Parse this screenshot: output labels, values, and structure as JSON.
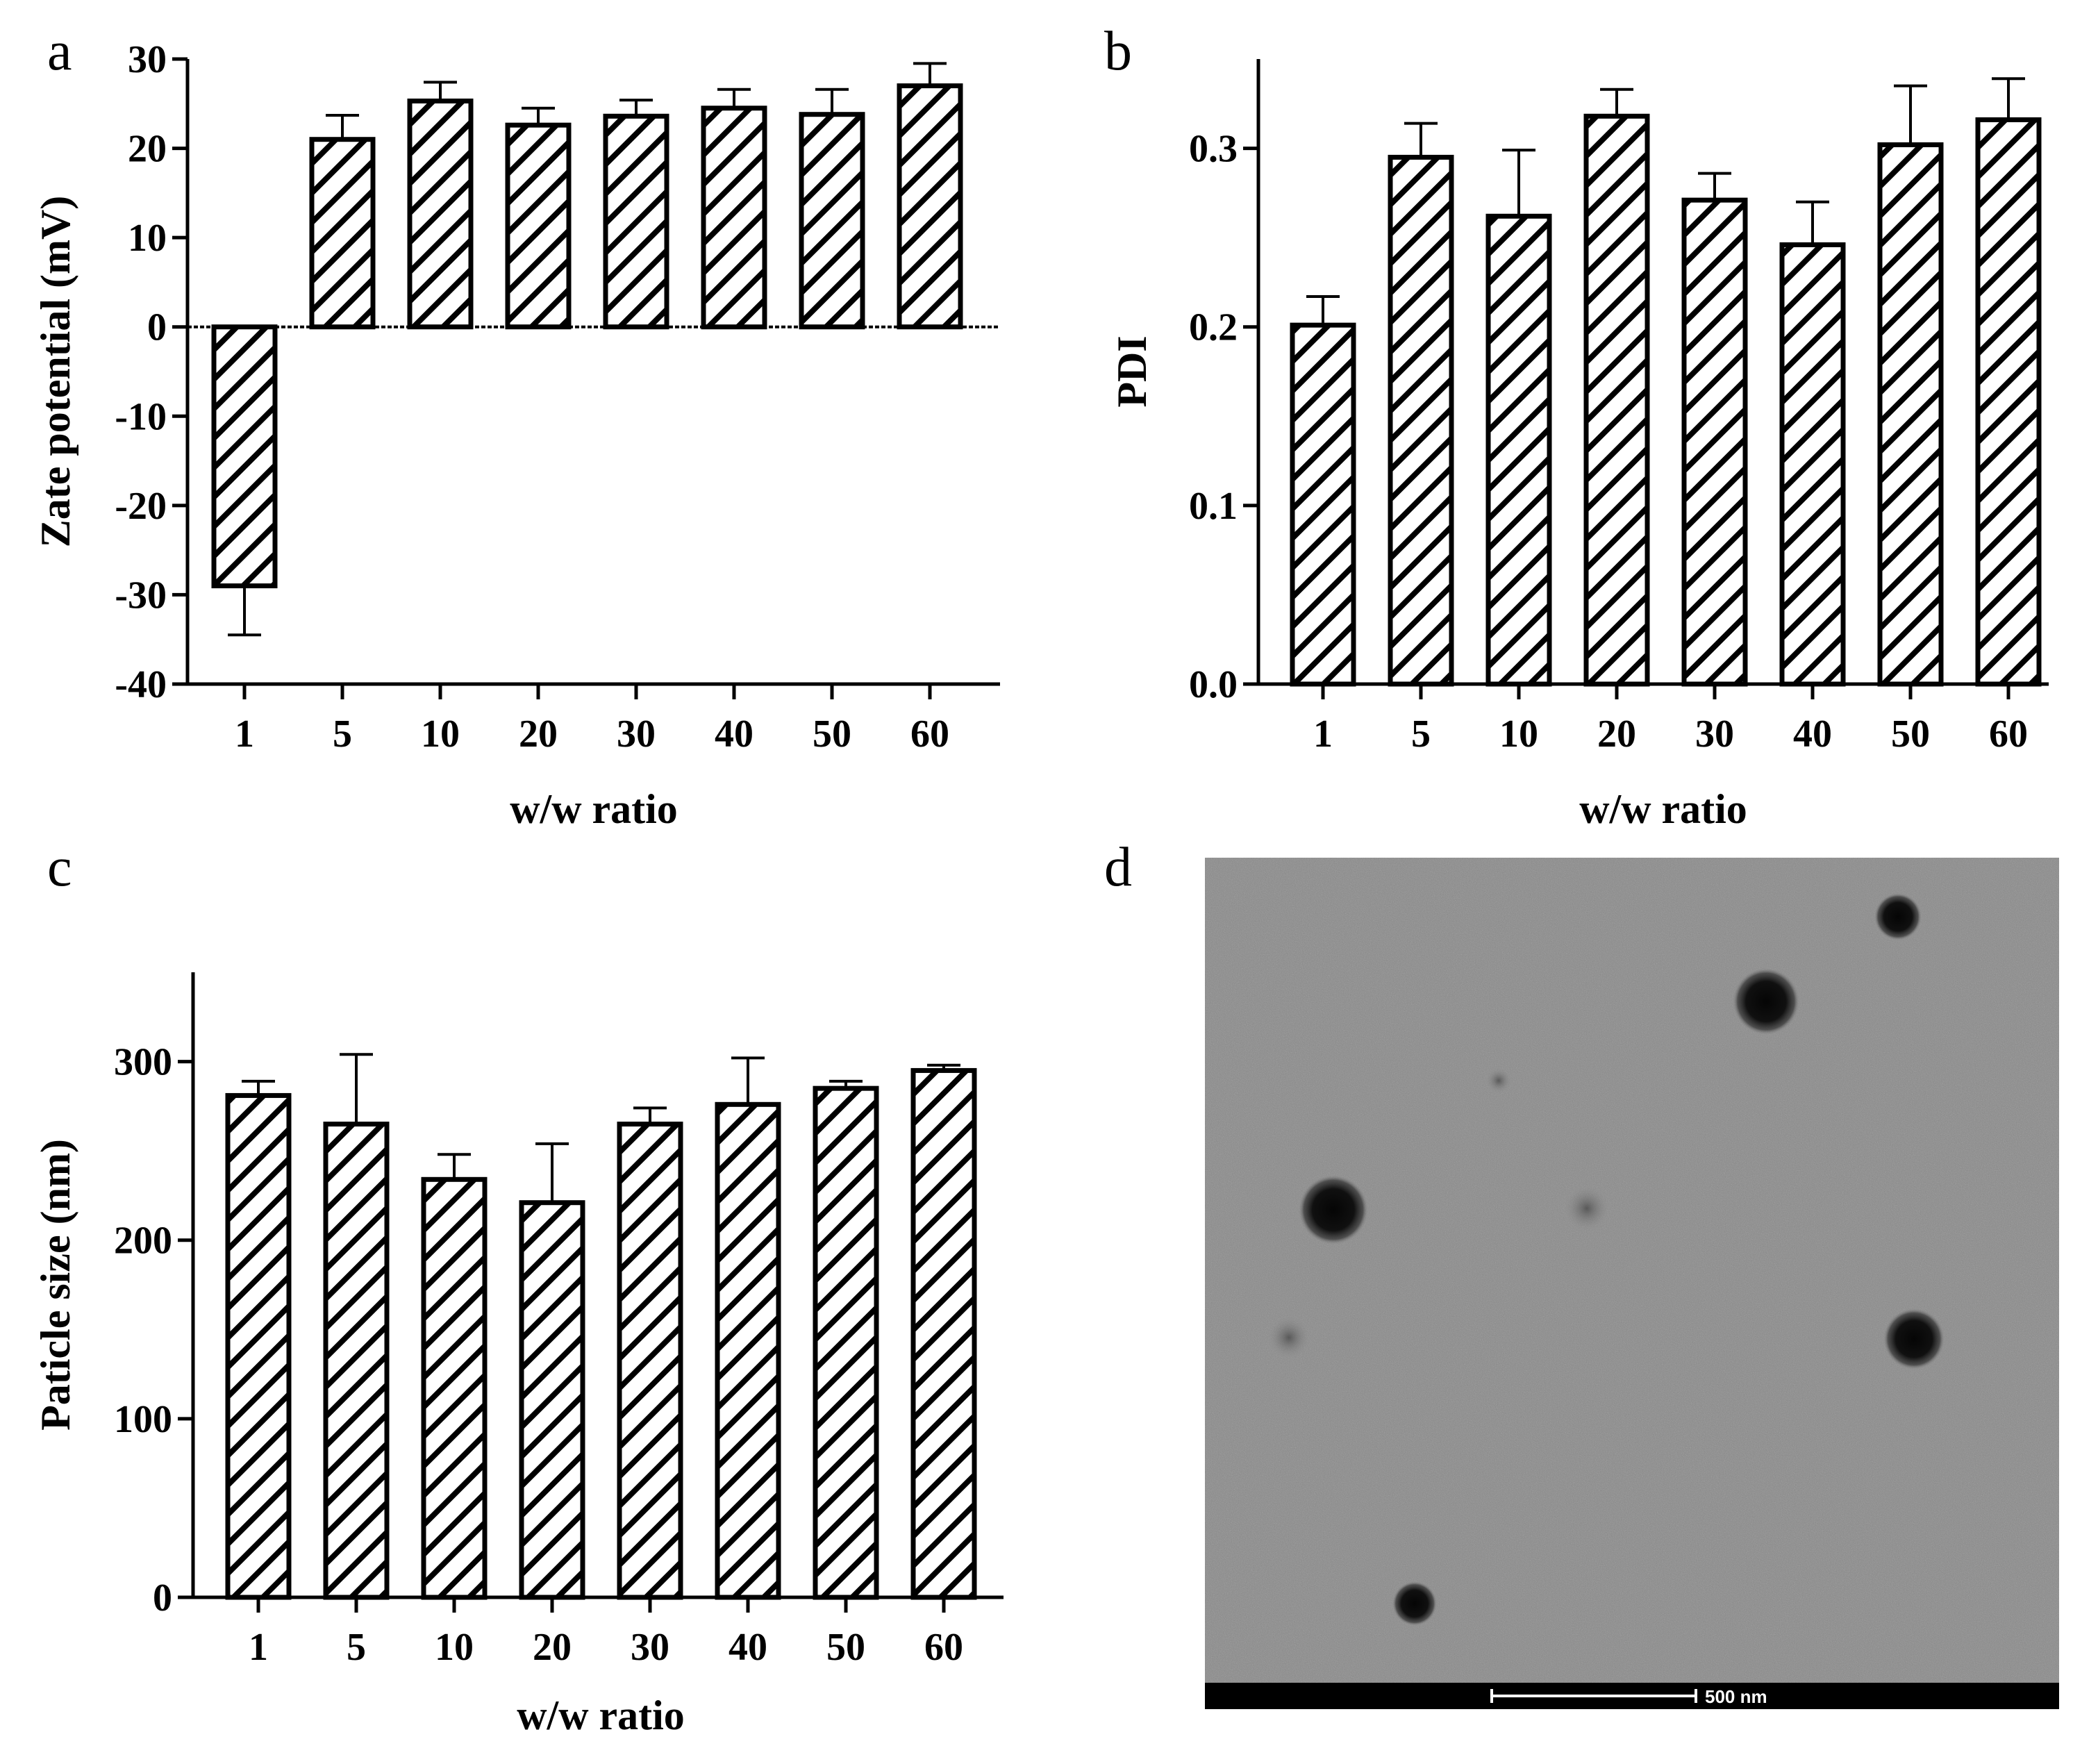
{
  "chart_data": [
    {
      "panel": "a",
      "type": "bar",
      "categories": [
        "1",
        "5",
        "10",
        "20",
        "30",
        "40",
        "50",
        "60"
      ],
      "values": [
        -29,
        21,
        25.3,
        22.6,
        23.6,
        24.5,
        23.8,
        27
      ],
      "errors": [
        5.5,
        2.7,
        2.1,
        1.9,
        1.8,
        2.1,
        2.8,
        2.5
      ],
      "xlabel": "w/w ratio",
      "ylabel": "Zate potential (mV)",
      "ylim": [
        -40,
        30
      ],
      "yticks": [
        "30",
        "20",
        "10",
        "0",
        "-10",
        "-20",
        "-30",
        "-40"
      ],
      "grid": false,
      "zero_line": true,
      "bar_pattern": "diagonal hatch"
    },
    {
      "panel": "b",
      "type": "bar",
      "categories": [
        "1",
        "5",
        "10",
        "20",
        "30",
        "40",
        "50",
        "60"
      ],
      "values": [
        0.201,
        0.295,
        0.262,
        0.318,
        0.271,
        0.246,
        0.302,
        0.316
      ],
      "errors": [
        0.016,
        0.019,
        0.037,
        0.015,
        0.015,
        0.024,
        0.033,
        0.023
      ],
      "xlabel": "w/w ratio",
      "ylabel": "PDI",
      "ylim": [
        0,
        0.35
      ],
      "yticks": [
        "0.3",
        "0.2",
        "0.1",
        "0.0"
      ],
      "grid": false,
      "bar_pattern": "diagonal hatch"
    },
    {
      "panel": "c",
      "type": "bar",
      "categories": [
        "1",
        "5",
        "10",
        "20",
        "30",
        "40",
        "50",
        "60"
      ],
      "values": [
        281,
        265,
        234,
        221,
        265,
        276,
        285,
        295
      ],
      "errors": [
        8,
        39,
        14,
        33,
        9,
        26,
        4,
        3
      ],
      "xlabel": "w/w ratio",
      "ylabel": "Paticle size (nm)",
      "ylim": [
        0,
        350
      ],
      "yticks": [
        "300",
        "200",
        "100",
        "0"
      ],
      "grid": false,
      "bar_pattern": "diagonal hatch"
    }
  ],
  "micrograph": {
    "panel": "d",
    "background": "#8a8a8a",
    "scale_bar_label": "500 nm"
  }
}
